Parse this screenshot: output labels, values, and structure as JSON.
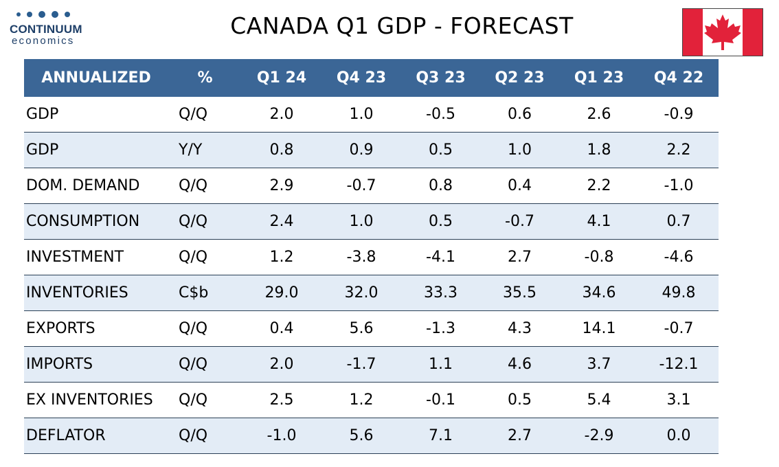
{
  "logo": {
    "name": "CONTINUUM",
    "sub": "economics"
  },
  "title": "CANADA Q1 GDP  - FORECAST",
  "colors": {
    "header_bg": "#3b6696",
    "alt_row_bg": "#e3ecf6",
    "flag_red": "#e2223a"
  },
  "chart_data": {
    "type": "table",
    "columns": [
      "ANNUALIZED",
      "%",
      "Q1 24",
      "Q4 23",
      "Q3 23",
      "Q2 23",
      "Q1 23",
      "Q4 22"
    ],
    "rows": [
      {
        "label": "GDP",
        "unit": "Q/Q",
        "values": [
          "2.0",
          "1.0",
          "-0.5",
          "0.6",
          "2.6",
          "-0.9"
        ]
      },
      {
        "label": "GDP",
        "unit": "Y/Y",
        "values": [
          "0.8",
          "0.9",
          "0.5",
          "1.0",
          "1.8",
          "2.2"
        ]
      },
      {
        "label": "DOM. DEMAND",
        "unit": "Q/Q",
        "values": [
          "2.9",
          "-0.7",
          "0.8",
          "0.4",
          "2.2",
          "-1.0"
        ]
      },
      {
        "label": "CONSUMPTION",
        "unit": "Q/Q",
        "values": [
          "2.4",
          "1.0",
          "0.5",
          "-0.7",
          "4.1",
          "0.7"
        ]
      },
      {
        "label": "INVESTMENT",
        "unit": "Q/Q",
        "values": [
          "1.2",
          "-3.8",
          "-4.1",
          "2.7",
          "-0.8",
          "-4.6"
        ]
      },
      {
        "label": "INVENTORIES",
        "unit": "C$b",
        "values": [
          "29.0",
          "32.0",
          "33.3",
          "35.5",
          "34.6",
          "49.8"
        ]
      },
      {
        "label": "EXPORTS",
        "unit": "Q/Q",
        "values": [
          "0.4",
          "5.6",
          "-1.3",
          "4.3",
          "14.1",
          "-0.7"
        ]
      },
      {
        "label": "IMPORTS",
        "unit": "Q/Q",
        "values": [
          "2.0",
          "-1.7",
          "1.1",
          "4.6",
          "3.7",
          "-12.1"
        ]
      },
      {
        "label": "EX INVENTORIES",
        "unit": "Q/Q",
        "values": [
          "2.5",
          "1.2",
          "-0.1",
          "0.5",
          "5.4",
          "3.1"
        ]
      },
      {
        "label": "DEFLATOR",
        "unit": "Q/Q",
        "values": [
          "-1.0",
          "5.6",
          "7.1",
          "2.7",
          "-2.9",
          "0.0"
        ]
      }
    ]
  }
}
